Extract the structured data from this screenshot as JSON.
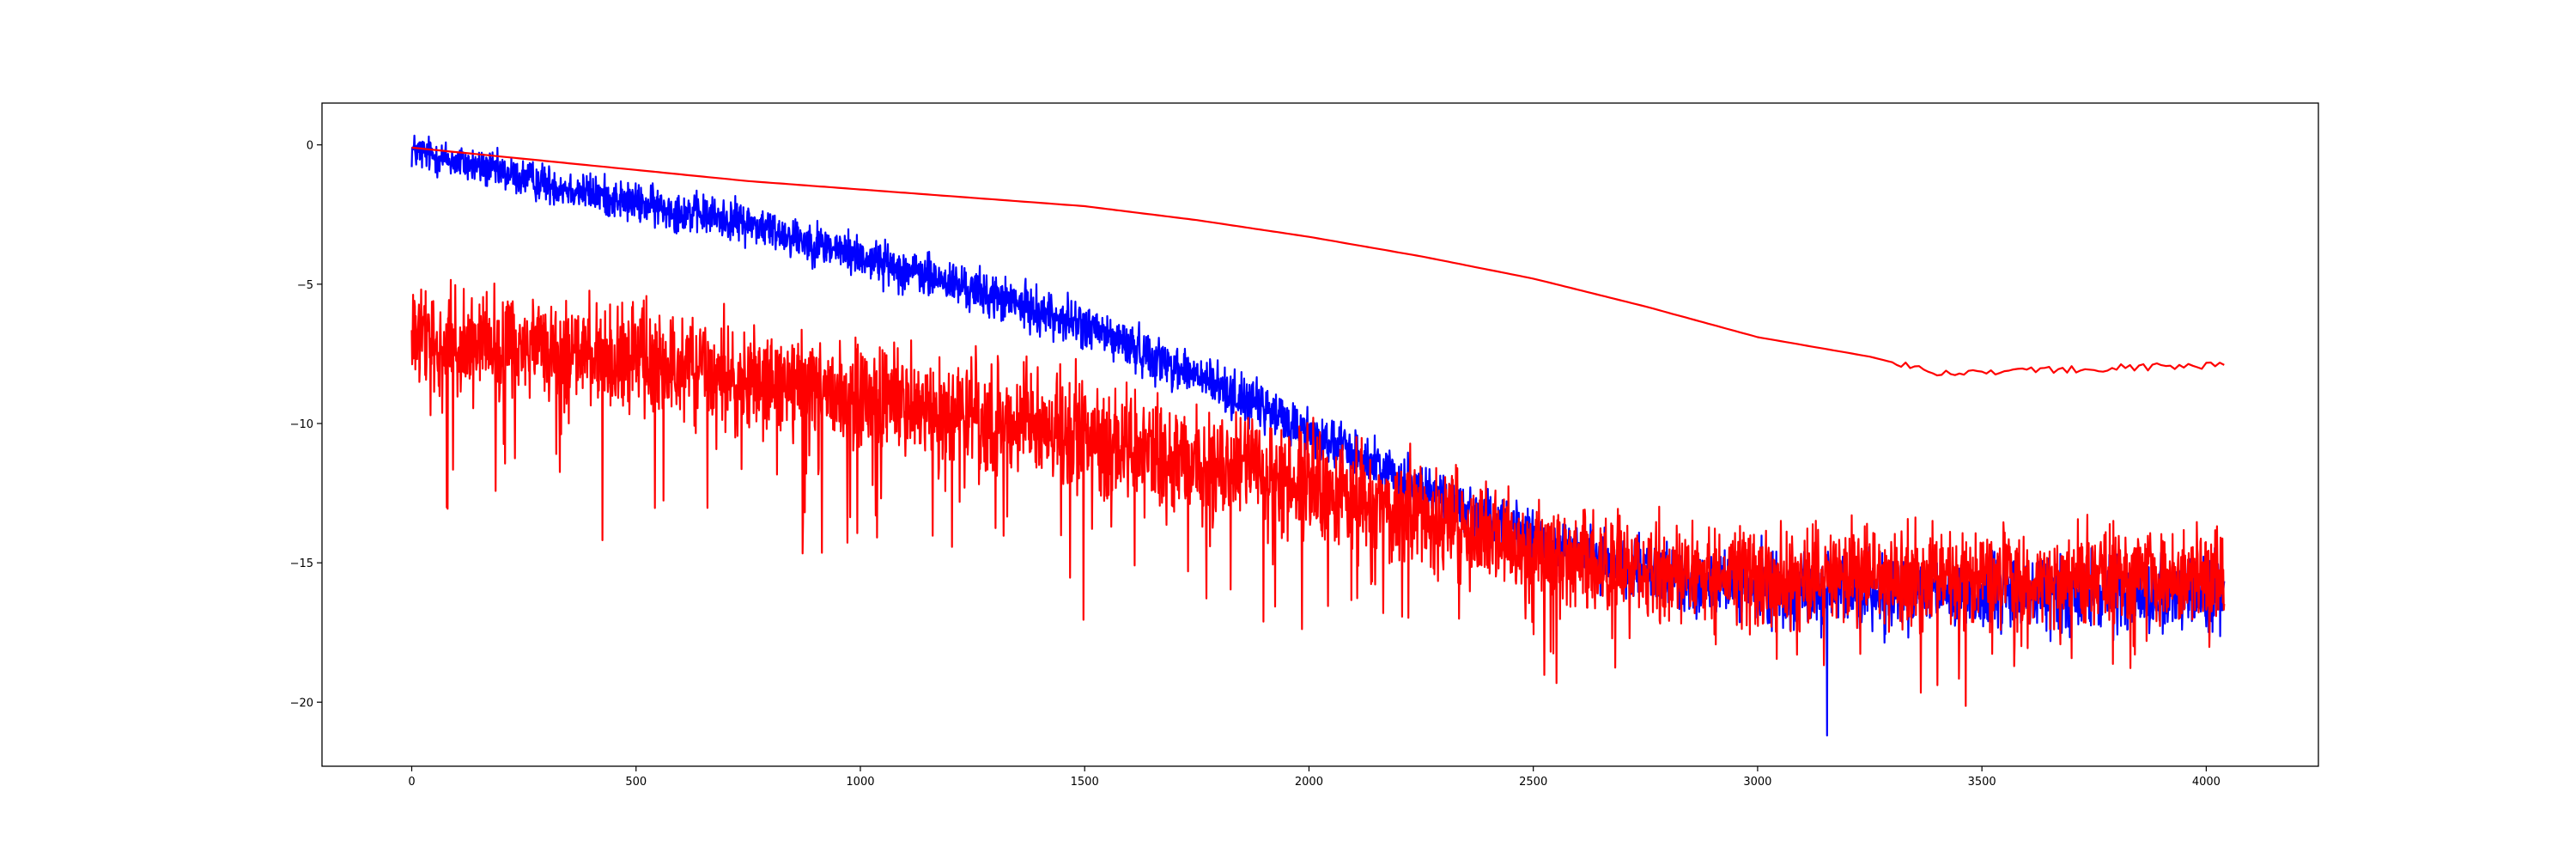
{
  "chart_data": {
    "type": "line",
    "title": "",
    "xlabel": "",
    "ylabel": "",
    "xlim": [
      -200,
      4250
    ],
    "ylim": [
      -22.3,
      1.5
    ],
    "xticks": [
      0,
      500,
      1000,
      1500,
      2000,
      2500,
      3000,
      3500,
      4000
    ],
    "yticks": [
      0,
      -5,
      -10,
      -15,
      -20
    ],
    "xtick_labels": [
      "0",
      "500",
      "1000",
      "1500",
      "2000",
      "2500",
      "3000",
      "3500",
      "4000"
    ],
    "ytick_labels": [
      "0",
      "−5",
      "−10",
      "−15",
      "−20"
    ],
    "grid": false,
    "legend": "none",
    "series": [
      {
        "color": "#0000ff",
        "style": "noisy",
        "n_points": 4040,
        "x_range": [
          0,
          4040
        ],
        "trend": [
          [
            0,
            -0.2
          ],
          [
            250,
            -1.2
          ],
          [
            500,
            -2.1
          ],
          [
            750,
            -2.8
          ],
          [
            1000,
            -4.0
          ],
          [
            1250,
            -5.2
          ],
          [
            1500,
            -6.5
          ],
          [
            1750,
            -8.3
          ],
          [
            2000,
            -10.3
          ],
          [
            2250,
            -12.3
          ],
          [
            2500,
            -14.1
          ],
          [
            2700,
            -15.2
          ],
          [
            2900,
            -15.8
          ],
          [
            3100,
            -16.0
          ],
          [
            3500,
            -16.1
          ],
          [
            4040,
            -16.1
          ]
        ],
        "noise_amplitude": [
          [
            0,
            0.5
          ],
          [
            2500,
            0.7
          ],
          [
            3000,
            1.0
          ],
          [
            4040,
            1.0
          ]
        ],
        "min_point": [
          3155,
          -21.2
        ]
      },
      {
        "color": "#ff0000",
        "style": "smooth",
        "trend": [
          [
            0,
            -0.1
          ],
          [
            250,
            -0.5
          ],
          [
            500,
            -0.9
          ],
          [
            750,
            -1.3
          ],
          [
            1000,
            -1.6
          ],
          [
            1250,
            -1.9
          ],
          [
            1500,
            -2.2
          ],
          [
            1750,
            -2.7
          ],
          [
            2000,
            -3.3
          ],
          [
            2250,
            -4.0
          ],
          [
            2500,
            -4.8
          ],
          [
            2750,
            -5.8
          ],
          [
            3000,
            -6.9
          ],
          [
            3250,
            -7.6
          ],
          [
            3400,
            -8.2
          ],
          [
            3600,
            -8.1
          ],
          [
            3800,
            -8.0
          ],
          [
            4040,
            -7.9
          ]
        ]
      },
      {
        "color": "#ff0000",
        "style": "noisy",
        "n_points": 4040,
        "x_range": [
          0,
          4040
        ],
        "trend": [
          [
            0,
            -7.0
          ],
          [
            250,
            -7.3
          ],
          [
            500,
            -7.8
          ],
          [
            750,
            -8.4
          ],
          [
            1000,
            -9.0
          ],
          [
            1250,
            -9.7
          ],
          [
            1500,
            -10.4
          ],
          [
            1750,
            -11.3
          ],
          [
            2000,
            -12.2
          ],
          [
            2250,
            -13.3
          ],
          [
            2500,
            -14.4
          ],
          [
            2750,
            -15.2
          ],
          [
            3000,
            -15.5
          ],
          [
            4040,
            -15.5
          ]
        ],
        "noise_amplitude": [
          [
            0,
            1.4
          ],
          [
            1500,
            1.5
          ],
          [
            2500,
            1.3
          ],
          [
            4040,
            1.2
          ]
        ],
        "spike_depth": [
          [
            0,
            5.5
          ],
          [
            2000,
            5.0
          ],
          [
            3000,
            3.5
          ],
          [
            4040,
            3.0
          ]
        ]
      }
    ]
  }
}
